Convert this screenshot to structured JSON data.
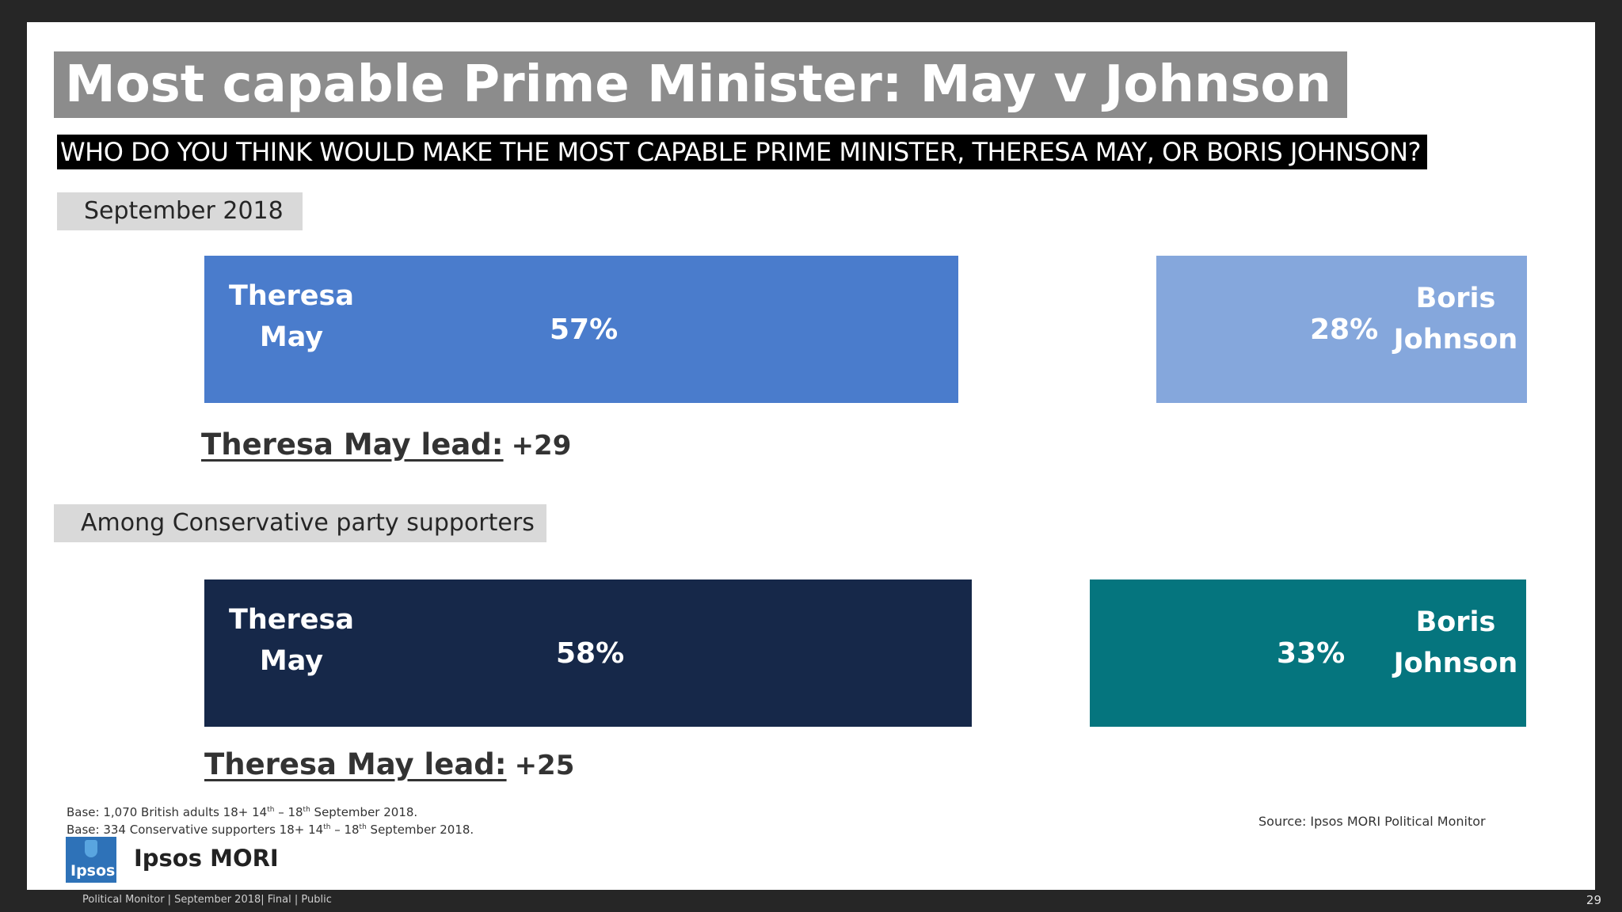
{
  "title": "Most capable Prime Minister: May v Johnson",
  "question": "WHO DO YOU THINK WOULD MAKE THE MOST CAPABLE PRIME MINISTER,  THERESA MAY, OR BORIS JOHNSON?",
  "colors": {
    "may_all": "#4a7ccc",
    "johnson_all": "#85a7dc",
    "may_con": "#162849",
    "johnson_con": "#05757e"
  },
  "chart_data": [
    {
      "type": "bar",
      "title": "September 2018",
      "categories": [
        "Theresa May",
        "Boris Johnson"
      ],
      "values": [
        57,
        28
      ],
      "labels": [
        "57%",
        "28%"
      ],
      "names": [
        [
          "Theresa",
          "May"
        ],
        [
          "Boris",
          "Johnson"
        ]
      ],
      "lead_label": "Theresa May lead:",
      "lead_value": "+29"
    },
    {
      "type": "bar",
      "title": "Among Conservative party supporters",
      "categories": [
        "Theresa May",
        "Boris Johnson"
      ],
      "values": [
        58,
        33
      ],
      "labels": [
        "58%",
        "33%"
      ],
      "names": [
        [
          "Theresa",
          "May"
        ],
        [
          "Boris",
          "Johnson"
        ]
      ],
      "lead_label": "Theresa May lead:",
      "lead_value": "+25"
    }
  ],
  "notes": {
    "base1_pre": "Base:  1,070 British adults 18+ 14",
    "base1_mid": " – 18",
    "base1_post": " September 2018.",
    "base2_pre": "Base: 334 Conservative supporters 18+ 14",
    "base2_mid": " – 18",
    "base2_post": " September 2018.",
    "sup": "th"
  },
  "source": "Source: Ipsos MORI Political Monitor",
  "logo": {
    "box_text": "Ipsos",
    "brand": "Ipsos MORI"
  },
  "footer": "Political Monitor | September 2018| Final |  Public",
  "page_number": "29"
}
